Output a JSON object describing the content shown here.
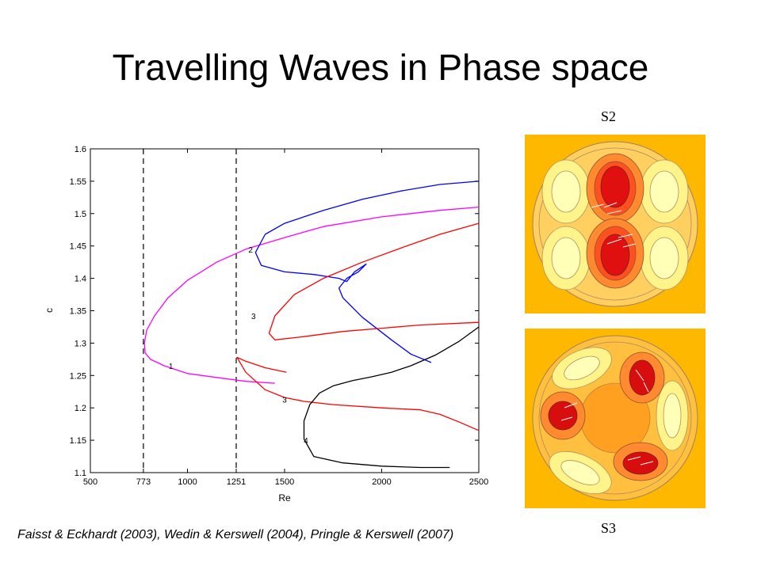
{
  "slide": {
    "title": "Travelling Waves in Phase space",
    "citation": "Faisst & Eckhardt (2003), Wedin & Kerswell (2004), Pringle & Kerswell (2007)"
  },
  "panels": [
    {
      "label": "S2"
    },
    {
      "label": "S3"
    }
  ],
  "colors": {
    "magenta": "#ff00ff",
    "blue": "#0000ff",
    "red": "#ff0000",
    "black": "#000000",
    "field_bg": "#ffb800",
    "field_dark": "#d90000"
  },
  "chart_data": {
    "type": "line",
    "xlabel": "Re",
    "ylabel": "c",
    "xlim": [
      500,
      2500
    ],
    "ylim": [
      1.1,
      1.6
    ],
    "xticks": [
      500,
      773,
      1000,
      1251,
      1500,
      2000,
      2500
    ],
    "yticks": [
      1.1,
      1.15,
      1.2,
      1.25,
      1.3,
      1.35,
      1.4,
      1.45,
      1.5,
      1.55,
      1.6
    ],
    "vlines": [
      773,
      1251
    ],
    "annotations": [
      {
        "text": "1",
        "x": 915,
        "y": 1.265
      },
      {
        "text": "2",
        "x": 1325,
        "y": 1.445
      },
      {
        "text": "3",
        "x": 1340,
        "y": 1.342
      },
      {
        "text": "3",
        "x": 1500,
        "y": 1.213
      },
      {
        "text": "4",
        "x": 1610,
        "y": 1.15
      }
    ],
    "series": [
      {
        "color": "#ff00ff",
        "points": [
          [
            2500,
            1.51
          ],
          [
            2300,
            1.505
          ],
          [
            2000,
            1.495
          ],
          [
            1700,
            1.48
          ],
          [
            1500,
            1.463
          ],
          [
            1300,
            1.445
          ],
          [
            1150,
            1.425
          ],
          [
            1000,
            1.397
          ],
          [
            900,
            1.37
          ],
          [
            830,
            1.342
          ],
          [
            790,
            1.32
          ],
          [
            778,
            1.3
          ],
          [
            782,
            1.285
          ],
          [
            810,
            1.275
          ],
          [
            880,
            1.265
          ],
          [
            1000,
            1.253
          ],
          [
            1150,
            1.247
          ],
          [
            1300,
            1.241
          ],
          [
            1450,
            1.238
          ]
        ]
      },
      {
        "color": "#0000ff",
        "points": [
          [
            2500,
            1.55
          ],
          [
            2300,
            1.545
          ],
          [
            2100,
            1.535
          ],
          [
            1900,
            1.522
          ],
          [
            1700,
            1.505
          ],
          [
            1500,
            1.485
          ],
          [
            1400,
            1.468
          ],
          [
            1350,
            1.44
          ],
          [
            1380,
            1.42
          ],
          [
            1500,
            1.41
          ],
          [
            1650,
            1.406
          ],
          [
            1780,
            1.4
          ],
          [
            1820,
            1.395
          ],
          [
            1860,
            1.41
          ],
          [
            1920,
            1.422
          ],
          [
            1880,
            1.41
          ],
          [
            1820,
            1.4
          ],
          [
            1780,
            1.385
          ],
          [
            1800,
            1.37
          ],
          [
            1900,
            1.34
          ],
          [
            2050,
            1.305
          ],
          [
            2150,
            1.283
          ],
          [
            2255,
            1.27
          ]
        ]
      },
      {
        "color": "#ff0000",
        "points": [
          [
            2500,
            1.485
          ],
          [
            2300,
            1.468
          ],
          [
            2100,
            1.447
          ],
          [
            1900,
            1.425
          ],
          [
            1700,
            1.4
          ],
          [
            1550,
            1.375
          ],
          [
            1450,
            1.342
          ],
          [
            1420,
            1.315
          ],
          [
            1450,
            1.305
          ],
          [
            1600,
            1.31
          ],
          [
            1800,
            1.318
          ],
          [
            2000,
            1.323
          ],
          [
            2200,
            1.328
          ],
          [
            2500,
            1.332
          ]
        ]
      },
      {
        "color": "#ff0000",
        "points": [
          [
            1510,
            1.255
          ],
          [
            1400,
            1.262
          ],
          [
            1300,
            1.272
          ],
          [
            1255,
            1.278
          ],
          [
            1300,
            1.255
          ],
          [
            1400,
            1.228
          ],
          [
            1500,
            1.216
          ],
          [
            1600,
            1.21
          ],
          [
            1750,
            1.205
          ],
          [
            2000,
            1.2
          ],
          [
            2200,
            1.197
          ],
          [
            2300,
            1.19
          ],
          [
            2400,
            1.178
          ],
          [
            2500,
            1.165
          ]
        ]
      },
      {
        "color": "#000000",
        "points": [
          [
            2500,
            1.325
          ],
          [
            2400,
            1.303
          ],
          [
            2280,
            1.282
          ],
          [
            2150,
            1.265
          ],
          [
            2050,
            1.255
          ],
          [
            1950,
            1.248
          ],
          [
            1850,
            1.242
          ],
          [
            1750,
            1.234
          ],
          [
            1680,
            1.223
          ],
          [
            1630,
            1.205
          ],
          [
            1600,
            1.18
          ],
          [
            1600,
            1.152
          ],
          [
            1650,
            1.125
          ],
          [
            1800,
            1.115
          ],
          [
            2000,
            1.11
          ],
          [
            2200,
            1.108
          ],
          [
            2350,
            1.108
          ]
        ]
      }
    ]
  }
}
